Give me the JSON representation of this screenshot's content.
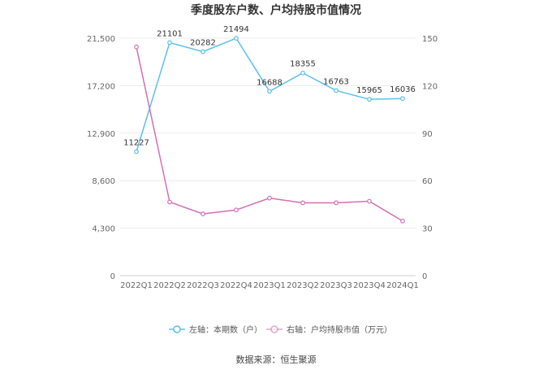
{
  "chart_data": {
    "type": "line",
    "title": "季度股东户数、户均持股市值情况",
    "categories": [
      "2022Q1",
      "2022Q2",
      "2022Q3",
      "2022Q4",
      "2023Q1",
      "2023Q2",
      "2023Q3",
      "2023Q4",
      "2024Q1"
    ],
    "left_axis": {
      "ticks": [
        "0",
        "4,300",
        "8,600",
        "12,900",
        "17,200",
        "21,500"
      ],
      "ylim": [
        0,
        21500
      ]
    },
    "right_axis": {
      "ticks": [
        "0",
        "30",
        "60",
        "90",
        "120",
        "150"
      ],
      "ylim": [
        0,
        150
      ]
    },
    "grid": true,
    "series": [
      {
        "name": "左轴：本期数（户）",
        "axis": "left",
        "color": "#5bc0eb",
        "values": [
          11227,
          21101,
          20282,
          21494,
          16688,
          18355,
          16763,
          15965,
          16036
        ],
        "labels": [
          "11227",
          "21101",
          "20282",
          "21494",
          "16688",
          "18355",
          "16763",
          "15965",
          "16036"
        ]
      },
      {
        "name": "右轴：户均持股市值（万元）",
        "axis": "right",
        "color": "#d36fb4",
        "values": [
          144.5,
          46.5,
          39.0,
          41.5,
          49.0,
          46.0,
          46.0,
          47.0,
          34.5
        ]
      }
    ],
    "legend_position": "bottom"
  },
  "source": "数据来源：恒生聚源"
}
